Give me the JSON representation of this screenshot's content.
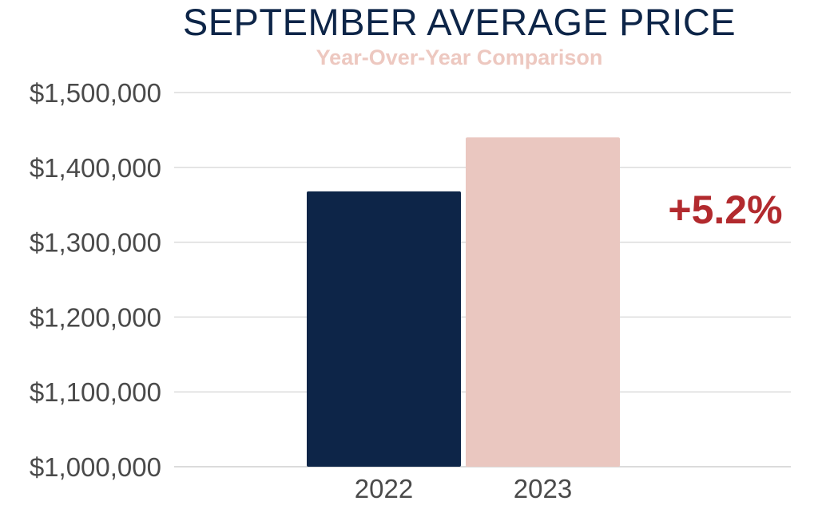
{
  "chart_data": {
    "type": "bar",
    "title": "SEPTEMBER AVERAGE PRICE",
    "subtitle": "Year-Over-Year Comparison",
    "categories": [
      "2022",
      "2023"
    ],
    "values": [
      1368000,
      1440000
    ],
    "bar_colors": [
      "#0d2548",
      "#eac7c0"
    ],
    "ylim": [
      1000000,
      1500000
    ],
    "y_ticks": [
      1000000,
      1100000,
      1200000,
      1300000,
      1400000,
      1500000
    ],
    "y_tick_labels": [
      "$1,000,000",
      "$1,100,000",
      "$1,200,000",
      "$1,300,000",
      "$1,400,000",
      "$1,500,000"
    ],
    "annotation": "+5.2%",
    "annotation_color": "#b22a2e",
    "grid": true,
    "xlabel": "",
    "ylabel": ""
  }
}
